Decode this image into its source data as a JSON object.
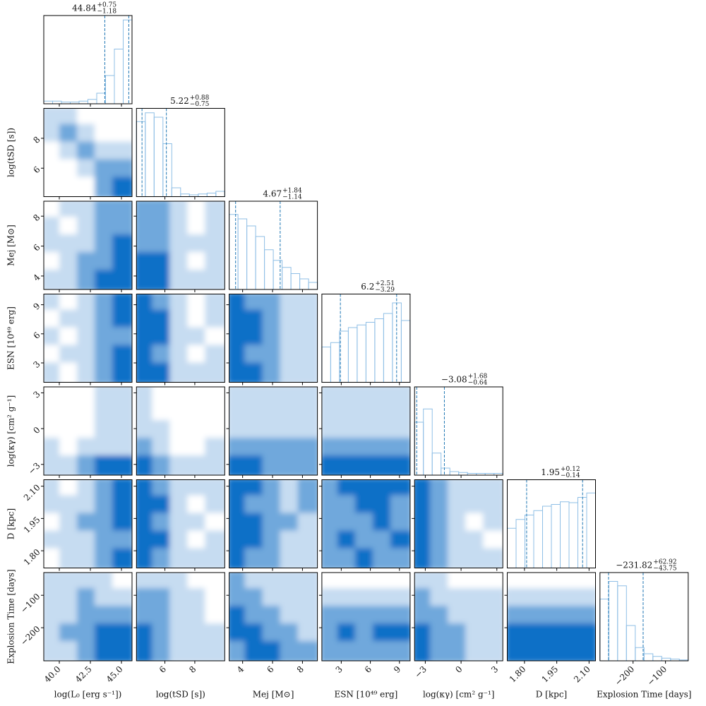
{
  "chart_data": {
    "type": "corner",
    "hist_color": "#8fbfe6",
    "quantile_color": "#1f77b4",
    "density_colors": [
      "#ffffff",
      "#c6dcf1",
      "#6fa8dc",
      "#0a6fc7"
    ],
    "params": [
      {
        "label": "log(L₀ [erg s⁻¹])",
        "lim": [
          38.75,
          45.85
        ],
        "ticks": [
          {
            "value": 40,
            "label": "40.0"
          },
          {
            "value": 42.5,
            "label": "42.5"
          },
          {
            "value": 45,
            "label": "45.0"
          }
        ],
        "title": {
          "median": 44.84,
          "plus": {
            "value": 0.75,
            "label": "+0.75"
          },
          "minus": {
            "value": -1.18,
            "label": "−1.18"
          }
        },
        "hist": {
          "bins": [
            38.75,
            39.46,
            40.17,
            40.88,
            41.59,
            42.3,
            43.01,
            43.72,
            44.43,
            45.14,
            45.85
          ],
          "counts": [
            3,
            3,
            2,
            2,
            3,
            5,
            12,
            32,
            62,
            95
          ],
          "ylim": [
            0,
            100
          ]
        }
      },
      {
        "label": "log(tSD [s])",
        "lim": [
          4.1,
          10.0
        ],
        "ticks": [
          6,
          8
        ],
        "title": {
          "median": 5.22,
          "plus": {
            "value": 0.88,
            "label": "+0.88"
          },
          "minus": {
            "value": -0.75,
            "label": "−0.75"
          }
        },
        "hist": {
          "bins": [
            4.1,
            4.69,
            5.28,
            5.87,
            6.46,
            7.05,
            7.64,
            8.23,
            8.82,
            9.41,
            10.0
          ],
          "counts": [
            85,
            95,
            90,
            60,
            10,
            3,
            2,
            3,
            4,
            6
          ],
          "ylim": [
            0,
            100
          ]
        }
      },
      {
        "label": "Mej [M⊙]",
        "lim": [
          3.1,
          9.0
        ],
        "ticks": [
          4,
          6,
          8
        ],
        "title": {
          "median": 4.67,
          "plus": {
            "value": 1.84,
            "label": "+1.84"
          },
          "minus": {
            "value": -1.14,
            "label": "−1.14"
          }
        },
        "hist": {
          "bins": [
            3.1,
            3.69,
            4.28,
            4.87,
            5.46,
            6.05,
            6.64,
            7.23,
            7.82,
            8.41,
            9.0
          ],
          "counts": [
            85,
            80,
            72,
            60,
            45,
            33,
            25,
            18,
            12,
            8
          ],
          "ylim": [
            0,
            100
          ]
        }
      },
      {
        "label": "ESN [10⁴⁹ erg]",
        "lim": [
          1.0,
          10.1
        ],
        "ticks": [
          3,
          6,
          9
        ],
        "title": {
          "median": 6.2,
          "plus": {
            "value": 2.51,
            "label": "+2.51"
          },
          "minus": {
            "value": -3.29,
            "label": "−3.29"
          }
        },
        "hist": {
          "bins": [
            1.0,
            1.91,
            2.82,
            3.73,
            4.64,
            5.55,
            6.46,
            7.37,
            8.28,
            9.19,
            10.1
          ],
          "counts": [
            40,
            45,
            58,
            62,
            65,
            68,
            72,
            78,
            90,
            70
          ],
          "ylim": [
            0,
            100
          ]
        }
      },
      {
        "label": "log(κγ) [cm² g⁻¹]",
        "lim": [
          -3.9,
          3.5
        ],
        "ticks": [
          {
            "value": -3,
            "label": "−3"
          },
          0,
          3
        ],
        "title": {
          "median": {
            "value": -3.08,
            "label": "−3.08"
          },
          "plus": {
            "value": 1.68,
            "label": "+1.68"
          },
          "minus": {
            "value": -0.64,
            "label": "−0.64"
          }
        },
        "hist": {
          "bins": [
            -3.9,
            -3.16,
            -2.42,
            -1.68,
            -0.94,
            -0.2,
            0.54,
            1.28,
            2.02,
            2.76,
            3.5
          ],
          "counts": [
            60,
            75,
            25,
            8,
            4,
            3,
            2,
            2,
            2,
            2
          ],
          "ylim": [
            0,
            100
          ]
        }
      },
      {
        "label": "D [kpc]",
        "lim": [
          1.72,
          2.13
        ],
        "ticks": [
          {
            "value": 1.8,
            "label": "1.80"
          },
          1.95,
          {
            "value": 2.1,
            "label": "2.10"
          }
        ],
        "title": {
          "median": 1.95,
          "plus": {
            "value": 0.12,
            "label": "+0.12"
          },
          "minus": {
            "value": -0.14,
            "label": "−0.14"
          }
        },
        "hist": {
          "bins": [
            1.72,
            1.761,
            1.802,
            1.843,
            1.884,
            1.925,
            1.966,
            2.007,
            2.048,
            2.089,
            2.13
          ],
          "counts": [
            45,
            55,
            60,
            65,
            70,
            72,
            75,
            74,
            80,
            85
          ],
          "ylim": [
            0,
            100
          ]
        }
      },
      {
        "label": "Explosion Time [days]",
        "lim": [
          -302,
          -30
        ],
        "ticks": [
          {
            "value": -200,
            "label": "−200"
          },
          {
            "value": -100,
            "label": "−100"
          }
        ],
        "title": {
          "median": {
            "value": -231.82,
            "label": "−231.82"
          },
          "plus": {
            "value": 62.92,
            "label": "+62.92"
          },
          "minus": {
            "value": -43.75,
            "label": "−43.75"
          }
        },
        "hist": {
          "bins": [
            -302,
            -274.8,
            -247.6,
            -220.4,
            -193.2,
            -166,
            -138.8,
            -111.6,
            -84.4,
            -57.2,
            -30
          ],
          "counts": [
            70,
            90,
            85,
            40,
            15,
            8,
            5,
            3,
            2,
            1
          ],
          "ylim": [
            0,
            100
          ]
        }
      }
    ],
    "panels": [
      {
        "density": [
          [
            1,
            1,
            0,
            0,
            0
          ],
          [
            1,
            2,
            1,
            0,
            0
          ],
          [
            0,
            1,
            2,
            1,
            1
          ],
          [
            0,
            0,
            1,
            2,
            2
          ],
          [
            0,
            0,
            0,
            2,
            3
          ]
        ]
      },
      {
        "density": [
          [
            0,
            1,
            1,
            2,
            2
          ],
          [
            1,
            0,
            1,
            2,
            2
          ],
          [
            1,
            1,
            1,
            2,
            3
          ],
          [
            0,
            1,
            2,
            2,
            3
          ],
          [
            1,
            1,
            2,
            3,
            3
          ]
        ]
      },
      {
        "density": [
          [
            2,
            2,
            1,
            0,
            1
          ],
          [
            2,
            2,
            1,
            0,
            1
          ],
          [
            2,
            2,
            1,
            1,
            1
          ],
          [
            3,
            3,
            1,
            0,
            1
          ],
          [
            3,
            3,
            1,
            1,
            1
          ]
        ]
      },
      {
        "density": [
          [
            1,
            0,
            1,
            2,
            3
          ],
          [
            0,
            1,
            1,
            2,
            3
          ],
          [
            1,
            0,
            1,
            2,
            2
          ],
          [
            0,
            1,
            1,
            2,
            3
          ],
          [
            1,
            0,
            1,
            2,
            3
          ]
        ]
      },
      {
        "density": [
          [
            3,
            2,
            1,
            0,
            1
          ],
          [
            3,
            3,
            1,
            0,
            1
          ],
          [
            3,
            3,
            1,
            1,
            0
          ],
          [
            3,
            2,
            1,
            0,
            1
          ],
          [
            3,
            3,
            1,
            1,
            1
          ]
        ]
      },
      {
        "density": [
          [
            3,
            2,
            2,
            1,
            1
          ],
          [
            3,
            3,
            2,
            1,
            1
          ],
          [
            3,
            3,
            2,
            1,
            1
          ],
          [
            3,
            2,
            2,
            1,
            1
          ],
          [
            3,
            3,
            2,
            1,
            1
          ]
        ]
      },
      {
        "density": [
          [
            0,
            0,
            0,
            1,
            1
          ],
          [
            0,
            0,
            0,
            1,
            1
          ],
          [
            0,
            0,
            0,
            1,
            1
          ],
          [
            1,
            0,
            1,
            1,
            1
          ],
          [
            1,
            1,
            2,
            3,
            3
          ]
        ]
      },
      {
        "density": [
          [
            1,
            0,
            0,
            0,
            0
          ],
          [
            1,
            0,
            0,
            0,
            0
          ],
          [
            1,
            1,
            0,
            0,
            0
          ],
          [
            2,
            1,
            0,
            0,
            1
          ],
          [
            3,
            2,
            1,
            1,
            1
          ]
        ]
      },
      {
        "density": [
          [
            1,
            1,
            1,
            1,
            1
          ],
          [
            1,
            1,
            1,
            1,
            1
          ],
          [
            1,
            1,
            1,
            1,
            1
          ],
          [
            2,
            2,
            2,
            2,
            2
          ],
          [
            3,
            3,
            2,
            2,
            2
          ]
        ]
      },
      {
        "density": [
          [
            1,
            1,
            1,
            1,
            1
          ],
          [
            1,
            1,
            1,
            1,
            1
          ],
          [
            1,
            1,
            1,
            1,
            1
          ],
          [
            2,
            2,
            2,
            2,
            2
          ],
          [
            3,
            3,
            3,
            3,
            3
          ]
        ]
      },
      {
        "density": [
          [
            1,
            0,
            1,
            2,
            3
          ],
          [
            1,
            1,
            1,
            2,
            3
          ],
          [
            0,
            1,
            2,
            2,
            3
          ],
          [
            1,
            1,
            1,
            2,
            2
          ],
          [
            0,
            1,
            1,
            2,
            3
          ]
        ]
      },
      {
        "density": [
          [
            3,
            2,
            1,
            1,
            1
          ],
          [
            3,
            3,
            1,
            0,
            1
          ],
          [
            3,
            2,
            1,
            1,
            0
          ],
          [
            3,
            3,
            1,
            0,
            1
          ],
          [
            3,
            2,
            1,
            1,
            1
          ]
        ]
      },
      {
        "density": [
          [
            3,
            3,
            2,
            1,
            2
          ],
          [
            3,
            2,
            2,
            1,
            2
          ],
          [
            3,
            3,
            2,
            2,
            1
          ],
          [
            3,
            3,
            2,
            1,
            1
          ],
          [
            3,
            2,
            2,
            1,
            1
          ]
        ]
      },
      {
        "density": [
          [
            2,
            3,
            3,
            3,
            3
          ],
          [
            2,
            2,
            3,
            3,
            2
          ],
          [
            2,
            2,
            2,
            3,
            2
          ],
          [
            2,
            3,
            2,
            2,
            3
          ],
          [
            2,
            2,
            3,
            2,
            2
          ]
        ]
      },
      {
        "density": [
          [
            3,
            2,
            1,
            1,
            1
          ],
          [
            3,
            2,
            1,
            1,
            1
          ],
          [
            3,
            2,
            1,
            0,
            1
          ],
          [
            3,
            2,
            1,
            1,
            0
          ],
          [
            3,
            2,
            1,
            1,
            1
          ]
        ]
      },
      {
        "density": [
          [
            1,
            1,
            1,
            1,
            0
          ],
          [
            1,
            1,
            2,
            1,
            1
          ],
          [
            1,
            1,
            2,
            2,
            2
          ],
          [
            1,
            2,
            2,
            3,
            3
          ],
          [
            1,
            1,
            2,
            3,
            3
          ]
        ]
      },
      {
        "density": [
          [
            1,
            1,
            1,
            0,
            0
          ],
          [
            2,
            2,
            1,
            1,
            0
          ],
          [
            2,
            2,
            1,
            1,
            0
          ],
          [
            3,
            2,
            1,
            1,
            1
          ],
          [
            3,
            2,
            1,
            1,
            1
          ]
        ]
      },
      {
        "density": [
          [
            2,
            1,
            1,
            1,
            1
          ],
          [
            2,
            2,
            1,
            1,
            1
          ],
          [
            3,
            2,
            2,
            1,
            1
          ],
          [
            3,
            3,
            2,
            2,
            1
          ],
          [
            2,
            3,
            3,
            2,
            2
          ]
        ]
      },
      {
        "density": [
          [
            0,
            0,
            0,
            0,
            0
          ],
          [
            1,
            1,
            1,
            1,
            1
          ],
          [
            2,
            2,
            2,
            2,
            2
          ],
          [
            2,
            3,
            2,
            3,
            3
          ],
          [
            2,
            2,
            2,
            2,
            2
          ]
        ]
      },
      {
        "density": [
          [
            1,
            1,
            0,
            0,
            0
          ],
          [
            2,
            1,
            1,
            1,
            1
          ],
          [
            2,
            2,
            1,
            1,
            1
          ],
          [
            3,
            2,
            2,
            1,
            1
          ],
          [
            3,
            2,
            2,
            1,
            1
          ]
        ]
      },
      {
        "density": [
          [
            0,
            0,
            0,
            0,
            0
          ],
          [
            1,
            1,
            1,
            1,
            1
          ],
          [
            2,
            2,
            2,
            2,
            2
          ],
          [
            3,
            3,
            3,
            3,
            3
          ],
          [
            3,
            3,
            3,
            3,
            3
          ]
        ]
      }
    ]
  }
}
